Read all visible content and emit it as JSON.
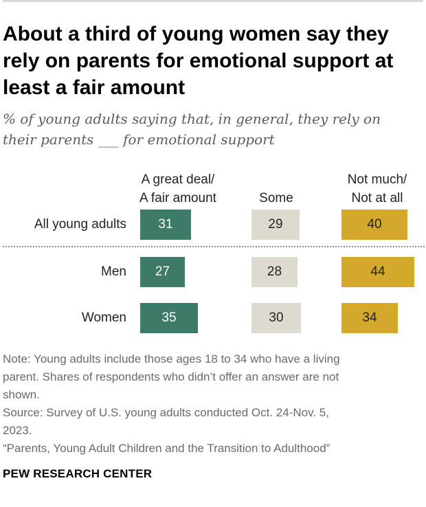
{
  "title": "About a third of young women say they rely on parents for emotional support at least a fair amount",
  "subtitle": "% of young adults saying that, in general, they rely on their parents ___ for emotional support",
  "chart_data": {
    "type": "table",
    "columns": [
      {
        "label_line1": "A great deal/",
        "label_line2": "A fair amount",
        "color": "#3d7a67"
      },
      {
        "label_line1": "",
        "label_line2": "Some",
        "color": "#dddbd0"
      },
      {
        "label_line1": "Not much/",
        "label_line2": "Not at all",
        "color": "#d4a82c"
      }
    ],
    "categories": [
      "All young adults",
      "Men",
      "Women"
    ],
    "series": [
      {
        "name": "A great deal/A fair amount",
        "values": [
          31,
          27,
          35
        ]
      },
      {
        "name": "Some",
        "values": [
          29,
          28,
          30
        ]
      },
      {
        "name": "Not much/Not at all",
        "values": [
          40,
          44,
          34
        ]
      }
    ],
    "value_range": [
      0,
      100
    ]
  },
  "notes": {
    "note_line1": "Note: Young adults include those ages 18 to 34 who have a living",
    "note_line2": "parent. Shares of respondents who didn’t offer an answer are not",
    "note_line3": "shown.",
    "source_line1": "Source: Survey of U.S. young adults conducted Oct. 24-Nov. 5,",
    "source_line2": "2023.",
    "report": "“Parents, Young Adult Children and the Transition to Adulthood”"
  },
  "brand": "PEW RESEARCH CENTER"
}
